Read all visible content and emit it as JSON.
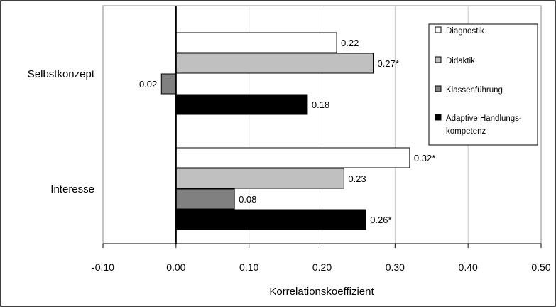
{
  "chart_data": {
    "type": "bar",
    "orientation": "horizontal",
    "categories": [
      "Selbstkonzept",
      "Interesse"
    ],
    "series": [
      {
        "name": "Diagnostik",
        "values": [
          0.22,
          0.32
        ],
        "labels": [
          "0.22",
          "0.32*"
        ],
        "color": "#ffffff"
      },
      {
        "name": "Didaktik",
        "values": [
          0.27,
          0.23
        ],
        "labels": [
          "0.27*",
          "0.23"
        ],
        "color": "#c0c0c0"
      },
      {
        "name": "Klassenführung",
        "values": [
          -0.02,
          0.08
        ],
        "labels": [
          "-0.02",
          "0.08"
        ],
        "color": "#808080"
      },
      {
        "name": "Adaptive Handlungskompetenz",
        "legend_lines": [
          "Adaptive Handlungs-",
          "kompetenz"
        ],
        "values": [
          0.18,
          0.26
        ],
        "labels": [
          "0.18",
          "0.26*"
        ],
        "color": "#000000"
      }
    ],
    "xlim": [
      -0.1,
      0.5
    ],
    "xticks": [
      "-0.10",
      "0.00",
      "0.10",
      "0.20",
      "0.30",
      "0.40",
      "0.50"
    ],
    "xlabel": "Korrelationskoeffizient",
    "ylabel": "",
    "title": "",
    "grid": "vertical",
    "legend_position": "top-right"
  }
}
